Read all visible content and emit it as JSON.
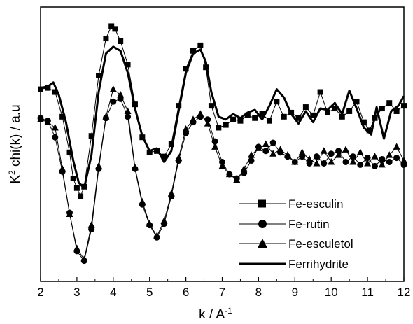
{
  "chart_data": {
    "type": "line",
    "title": "",
    "xlabel": "k / A",
    "xlabel_superscript": "-1",
    "ylabel_prefix": "K",
    "ylabel_superscript": "2",
    "ylabel_rest": " chi(k) / a.u",
    "xlim": [
      2,
      12
    ],
    "ylim": [
      0,
      10
    ],
    "x_ticks": [
      2,
      3,
      4,
      5,
      6,
      7,
      8,
      9,
      10,
      11,
      12
    ],
    "y_tick_labels_shown": false,
    "grid": false,
    "legend_position": "bottom-right",
    "series": [
      {
        "name": "Fe-esculin",
        "marker": "square",
        "line_width": 1,
        "color": "#000000",
        "points": [
          [
            2.0,
            7.0
          ],
          [
            2.2,
            7.05
          ],
          [
            2.4,
            6.9
          ],
          [
            2.6,
            6.0
          ],
          [
            2.8,
            4.7
          ],
          [
            2.9,
            3.75
          ],
          [
            3.0,
            3.4
          ],
          [
            3.1,
            3.1
          ],
          [
            3.2,
            3.45
          ],
          [
            3.4,
            5.3
          ],
          [
            3.6,
            7.5
          ],
          [
            3.8,
            8.85
          ],
          [
            3.95,
            9.3
          ],
          [
            4.05,
            9.2
          ],
          [
            4.2,
            8.75
          ],
          [
            4.4,
            7.9
          ],
          [
            4.6,
            6.45
          ],
          [
            4.8,
            5.25
          ],
          [
            5.0,
            4.7
          ],
          [
            5.2,
            4.75
          ],
          [
            5.4,
            4.55
          ],
          [
            5.6,
            5.0
          ],
          [
            5.8,
            6.4
          ],
          [
            6.0,
            7.75
          ],
          [
            6.2,
            8.4
          ],
          [
            6.4,
            8.6
          ],
          [
            6.55,
            7.8
          ],
          [
            6.7,
            6.4
          ],
          [
            6.9,
            5.6
          ],
          [
            7.1,
            5.7
          ],
          [
            7.3,
            5.9
          ],
          [
            7.5,
            5.85
          ],
          [
            7.7,
            6.05
          ],
          [
            7.9,
            5.95
          ],
          [
            8.1,
            6.1
          ],
          [
            8.3,
            5.85
          ],
          [
            8.5,
            6.55
          ],
          [
            8.7,
            6.0
          ],
          [
            8.9,
            6.15
          ],
          [
            9.1,
            5.95
          ],
          [
            9.3,
            6.35
          ],
          [
            9.5,
            6.05
          ],
          [
            9.7,
            6.9
          ],
          [
            9.9,
            6.15
          ],
          [
            10.1,
            6.3
          ],
          [
            10.3,
            6.0
          ],
          [
            10.5,
            6.2
          ],
          [
            10.7,
            6.55
          ],
          [
            10.9,
            5.8
          ],
          [
            11.05,
            5.5
          ],
          [
            11.2,
            5.95
          ],
          [
            11.4,
            6.3
          ],
          [
            11.6,
            6.5
          ],
          [
            11.8,
            6.2
          ],
          [
            12.0,
            6.4
          ]
        ]
      },
      {
        "name": "Fe-rutin",
        "marker": "circle",
        "line_width": 1,
        "color": "#000000",
        "points": [
          [
            2.0,
            5.95
          ],
          [
            2.2,
            5.85
          ],
          [
            2.4,
            5.25
          ],
          [
            2.6,
            4.0
          ],
          [
            2.8,
            2.5
          ],
          [
            3.0,
            1.1
          ],
          [
            3.2,
            0.75
          ],
          [
            3.4,
            1.9
          ],
          [
            3.6,
            4.1
          ],
          [
            3.8,
            5.95
          ],
          [
            4.0,
            6.55
          ],
          [
            4.2,
            6.65
          ],
          [
            4.4,
            6.0
          ],
          [
            4.6,
            4.1
          ],
          [
            4.8,
            2.8
          ],
          [
            5.0,
            2.05
          ],
          [
            5.2,
            1.6
          ],
          [
            5.4,
            2.1
          ],
          [
            5.6,
            3.1
          ],
          [
            5.8,
            4.4
          ],
          [
            6.0,
            5.4
          ],
          [
            6.2,
            5.8
          ],
          [
            6.4,
            6.0
          ],
          [
            6.6,
            5.9
          ],
          [
            6.8,
            5.1
          ],
          [
            7.0,
            4.35
          ],
          [
            7.2,
            3.9
          ],
          [
            7.4,
            3.75
          ],
          [
            7.6,
            3.95
          ],
          [
            7.8,
            4.4
          ],
          [
            8.0,
            4.9
          ],
          [
            8.2,
            4.75
          ],
          [
            8.4,
            5.05
          ],
          [
            8.6,
            4.7
          ],
          [
            8.8,
            4.55
          ],
          [
            9.0,
            4.35
          ],
          [
            9.2,
            4.55
          ],
          [
            9.4,
            4.3
          ],
          [
            9.6,
            4.55
          ],
          [
            9.8,
            4.3
          ],
          [
            10.0,
            4.65
          ],
          [
            10.2,
            4.75
          ],
          [
            10.4,
            4.35
          ],
          [
            10.6,
            4.55
          ],
          [
            10.8,
            4.25
          ],
          [
            11.0,
            4.5
          ],
          [
            11.2,
            4.2
          ],
          [
            11.4,
            4.45
          ],
          [
            11.6,
            4.35
          ],
          [
            11.8,
            4.5
          ],
          [
            12.0,
            4.25
          ]
        ]
      },
      {
        "name": "Fe-esculetol",
        "marker": "triangle",
        "line_width": 1,
        "color": "#000000",
        "points": [
          [
            2.0,
            5.9
          ],
          [
            2.2,
            5.8
          ],
          [
            2.4,
            5.6
          ],
          [
            2.6,
            4.1
          ],
          [
            2.8,
            2.45
          ],
          [
            3.0,
            1.2
          ],
          [
            3.2,
            0.8
          ],
          [
            3.4,
            2.05
          ],
          [
            3.6,
            4.2
          ],
          [
            3.8,
            6.0
          ],
          [
            4.0,
            7.0
          ],
          [
            4.2,
            6.8
          ],
          [
            4.4,
            6.2
          ],
          [
            4.6,
            4.15
          ],
          [
            4.8,
            2.9
          ],
          [
            5.0,
            2.1
          ],
          [
            5.2,
            1.65
          ],
          [
            5.4,
            2.2
          ],
          [
            5.6,
            3.2
          ],
          [
            5.8,
            4.5
          ],
          [
            6.0,
            5.55
          ],
          [
            6.2,
            5.9
          ],
          [
            6.4,
            6.1
          ],
          [
            6.6,
            5.75
          ],
          [
            6.8,
            4.9
          ],
          [
            7.0,
            4.2
          ],
          [
            7.2,
            3.9
          ],
          [
            7.4,
            3.7
          ],
          [
            7.6,
            4.1
          ],
          [
            7.8,
            4.6
          ],
          [
            8.0,
            4.85
          ],
          [
            8.2,
            5.0
          ],
          [
            8.4,
            4.65
          ],
          [
            8.6,
            4.8
          ],
          [
            8.8,
            4.6
          ],
          [
            9.0,
            4.35
          ],
          [
            9.2,
            4.7
          ],
          [
            9.4,
            4.45
          ],
          [
            9.6,
            4.3
          ],
          [
            9.8,
            4.75
          ],
          [
            10.0,
            4.35
          ],
          [
            10.2,
            4.6
          ],
          [
            10.4,
            4.8
          ],
          [
            10.6,
            4.35
          ],
          [
            10.8,
            4.7
          ],
          [
            11.0,
            4.3
          ],
          [
            11.2,
            4.55
          ],
          [
            11.4,
            4.25
          ],
          [
            11.6,
            4.6
          ],
          [
            11.8,
            4.9
          ],
          [
            12.0,
            4.4
          ]
        ]
      },
      {
        "name": "Ferrihydrite",
        "marker": "none",
        "line_width": 3,
        "color": "#000000",
        "points": [
          [
            2.0,
            7.05
          ],
          [
            2.2,
            7.1
          ],
          [
            2.35,
            7.25
          ],
          [
            2.5,
            6.8
          ],
          [
            2.7,
            5.8
          ],
          [
            2.9,
            4.4
          ],
          [
            3.05,
            3.6
          ],
          [
            3.2,
            3.4
          ],
          [
            3.4,
            4.6
          ],
          [
            3.6,
            6.9
          ],
          [
            3.8,
            8.3
          ],
          [
            4.0,
            8.55
          ],
          [
            4.2,
            8.4
          ],
          [
            4.4,
            7.6
          ],
          [
            4.6,
            6.3
          ],
          [
            4.8,
            5.3
          ],
          [
            5.0,
            4.75
          ],
          [
            5.2,
            4.85
          ],
          [
            5.4,
            4.35
          ],
          [
            5.6,
            4.75
          ],
          [
            5.8,
            6.2
          ],
          [
            6.0,
            7.6
          ],
          [
            6.2,
            8.3
          ],
          [
            6.4,
            8.45
          ],
          [
            6.55,
            8.0
          ],
          [
            6.7,
            6.9
          ],
          [
            6.9,
            6.0
          ],
          [
            7.1,
            5.9
          ],
          [
            7.3,
            6.1
          ],
          [
            7.5,
            5.95
          ],
          [
            7.7,
            6.15
          ],
          [
            7.9,
            6.25
          ],
          [
            8.1,
            5.9
          ],
          [
            8.3,
            6.4
          ],
          [
            8.5,
            7.0
          ],
          [
            8.7,
            6.7
          ],
          [
            8.9,
            6.1
          ],
          [
            9.1,
            5.75
          ],
          [
            9.3,
            6.2
          ],
          [
            9.5,
            5.8
          ],
          [
            9.7,
            6.3
          ],
          [
            9.9,
            6.25
          ],
          [
            10.1,
            6.5
          ],
          [
            10.3,
            6.1
          ],
          [
            10.5,
            6.95
          ],
          [
            10.7,
            6.3
          ],
          [
            10.9,
            5.6
          ],
          [
            11.1,
            5.35
          ],
          [
            11.25,
            6.35
          ],
          [
            11.45,
            5.2
          ],
          [
            11.65,
            6.2
          ],
          [
            11.85,
            6.4
          ],
          [
            12.0,
            6.75
          ]
        ]
      }
    ]
  }
}
